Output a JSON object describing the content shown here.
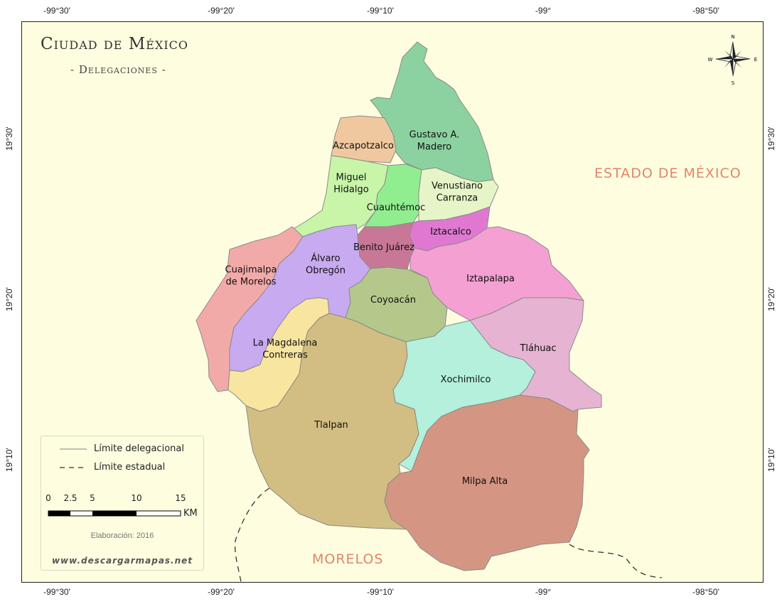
{
  "map": {
    "title": "Ciudad de México",
    "subtitle": "- Delegaciones -",
    "colors": {
      "background": "#fefde0",
      "label_states": "#e0866a",
      "border": "#888888"
    },
    "neighbor_labels": {
      "estado_de_mexico": "ESTADO DE MÉXICO",
      "morelos": "MORELOS"
    },
    "longitude_ticks": [
      "-99°30'",
      "-99°20'",
      "-99°10'",
      "-99°",
      "-98°50'"
    ],
    "latitude_ticks": [
      "19°30'",
      "19°20'",
      "19°10'"
    ],
    "compass": {
      "n": "N",
      "s": "S",
      "e": "E",
      "w": "W"
    },
    "delegaciones": [
      {
        "name": "Gustavo A. Madero",
        "lines": [
          "Gustavo A.",
          "Madero"
        ],
        "color": "#8cd2a0"
      },
      {
        "name": "Azcapotzalco",
        "lines": [
          "Azcapotzalco"
        ],
        "color": "#f0c8a0"
      },
      {
        "name": "Miguel Hidalgo",
        "lines": [
          "Miguel",
          "Hidalgo"
        ],
        "color": "#c8f5a8"
      },
      {
        "name": "Cuauhtémoc",
        "lines": [
          "Cuauhtémoc"
        ],
        "color": "#90ee90"
      },
      {
        "name": "Venustiano Carranza",
        "lines": [
          "Venustiano",
          "Carranza"
        ],
        "color": "#e6f5c8"
      },
      {
        "name": "Iztacalco",
        "lines": [
          "Iztacalco"
        ],
        "color": "#e078d2"
      },
      {
        "name": "Benito Juárez",
        "lines": [
          "Benito Juárez"
        ],
        "color": "#c87896"
      },
      {
        "name": "Cuajimalpa de Morelos",
        "lines": [
          "Cuajimalpa",
          "de Morelos"
        ],
        "color": "#f2aaa8"
      },
      {
        "name": "Álvaro Obregón",
        "lines": [
          "Álvaro",
          "Obregón"
        ],
        "color": "#c8aaf0"
      },
      {
        "name": "Iztapalapa",
        "lines": [
          "Iztapalapa"
        ],
        "color": "#f5a0d2"
      },
      {
        "name": "Coyoacán",
        "lines": [
          "Coyoacán"
        ],
        "color": "#b4c88c"
      },
      {
        "name": "La Magdalena Contreras",
        "lines": [
          "La Magdalena",
          "Contreras"
        ],
        "color": "#f8e6a0"
      },
      {
        "name": "Tláhuac",
        "lines": [
          "Tláhuac"
        ],
        "color": "#e6b4d2"
      },
      {
        "name": "Xochimilco",
        "lines": [
          "Xochimilco"
        ],
        "color": "#b4f0dc"
      },
      {
        "name": "Tlalpan",
        "lines": [
          "Tlalpan"
        ],
        "color": "#d2be82"
      },
      {
        "name": "Milpa Alta",
        "lines": [
          "Milpa Alta"
        ],
        "color": "#d49682"
      }
    ],
    "legend": {
      "limite_delegacional": "Límite delegacional",
      "limite_estadual": "Límite estadual",
      "scale_ticks": [
        "0",
        "2.5",
        "5",
        "10",
        "15"
      ],
      "scale_unit": "KM",
      "elaboracion": "Elaboración: 2016",
      "website": "www.descargarmapas.net"
    }
  }
}
